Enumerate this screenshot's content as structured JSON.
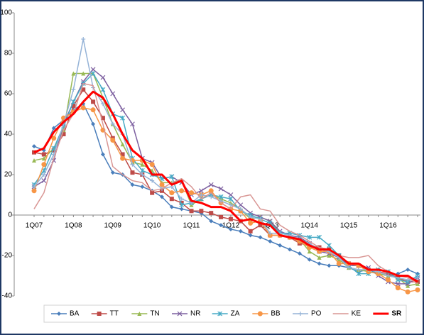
{
  "chart_data": {
    "type": "line",
    "categories": [
      "1Q07",
      null,
      null,
      null,
      "1Q08",
      null,
      null,
      null,
      "1Q09",
      null,
      null,
      null,
      "1Q10",
      null,
      null,
      null,
      "1Q11",
      null,
      null,
      null,
      "1Q12",
      null,
      null,
      null,
      "1Q13",
      null,
      null,
      null,
      "1Q14",
      null,
      null,
      null,
      "1Q15",
      null,
      null,
      null,
      "1Q16",
      null,
      null,
      null
    ],
    "ylim": [
      -40,
      100
    ],
    "yticks": [
      -40,
      -20,
      0,
      20,
      40,
      60,
      80,
      100
    ],
    "grid": false,
    "legend": "bottom",
    "series": [
      {
        "name": "BA",
        "color": "#4a7ebb",
        "marker": "diamond",
        "values": [
          34,
          32,
          43,
          47,
          52,
          55,
          45,
          30,
          21,
          20,
          15,
          14,
          12,
          9,
          4,
          3,
          2,
          1,
          -3,
          -5,
          -7,
          -8,
          -10,
          -11,
          -13,
          -15,
          -17,
          -19,
          -22,
          -24,
          -25,
          -25,
          -26,
          -28,
          -27,
          -29,
          -30,
          -29,
          -27,
          -29
        ]
      },
      {
        "name": "TT",
        "color": "#be4b48",
        "marker": "square",
        "values": [
          31,
          30,
          32,
          40,
          54,
          62,
          56,
          48,
          38,
          30,
          21,
          20,
          11,
          12,
          8,
          6,
          2,
          2,
          1,
          -1,
          -2,
          -3,
          -8,
          -5,
          -10,
          -10,
          -11,
          -14,
          -15,
          -16,
          -17,
          -20,
          -24,
          -25,
          -27,
          -28,
          -29,
          -31,
          -33,
          -33
        ]
      },
      {
        "name": "TN",
        "color": "#98b954",
        "marker": "triangle",
        "values": [
          27,
          28,
          33,
          42,
          70,
          70,
          70,
          58,
          45,
          35,
          26,
          25,
          22,
          16,
          16,
          17,
          5,
          8,
          10,
          8,
          6,
          3,
          -2,
          -1,
          -3,
          -9,
          -10,
          -12,
          -18,
          -21,
          -20,
          -22,
          -26,
          -27,
          -28,
          -29,
          -30,
          -31,
          -35,
          -34
        ]
      },
      {
        "name": "NR",
        "color": "#7d60a0",
        "marker": "x",
        "values": [
          14,
          17,
          27,
          45,
          56,
          66,
          72,
          68,
          60,
          52,
          45,
          28,
          26,
          18,
          19,
          16,
          10,
          12,
          15,
          13,
          10,
          5,
          1,
          -1,
          -3,
          -8,
          -10,
          -11,
          -14,
          -18,
          -19,
          -21,
          -25,
          -25,
          -26,
          -30,
          -33,
          -34,
          -34,
          -31
        ]
      },
      {
        "name": "ZA",
        "color": "#46aac5",
        "marker": "star",
        "values": [
          15,
          22,
          33,
          44,
          56,
          65,
          70,
          62,
          50,
          48,
          28,
          22,
          20,
          18,
          19,
          5,
          6,
          8,
          10,
          9,
          8,
          2,
          0,
          -2,
          -4,
          -9,
          -9,
          -10,
          -11,
          -11,
          -15,
          -20,
          -25,
          -29,
          -29,
          -27,
          -28,
          -32,
          -33,
          -30
        ]
      },
      {
        "name": "BB",
        "color": "#f79646",
        "marker": "circle",
        "values": [
          12,
          25,
          38,
          48,
          51,
          53,
          52,
          42,
          37,
          28,
          27,
          27,
          25,
          15,
          11,
          12,
          11,
          10,
          12,
          6,
          3,
          2,
          -4,
          -3,
          -10,
          -10,
          -11,
          -13,
          -16,
          -18,
          -18,
          -24,
          -24,
          -25,
          -28,
          -29,
          -32,
          -36,
          -38,
          -37
        ]
      },
      {
        "name": "PO",
        "color": "#95b3d7",
        "marker": "plus",
        "values": [
          14,
          20,
          30,
          45,
          62,
          87,
          63,
          55,
          45,
          40,
          25,
          20,
          17,
          13,
          14,
          8,
          6,
          10,
          9,
          7,
          5,
          3,
          -1,
          -2,
          -9,
          -9,
          -10,
          -12,
          -14,
          -17,
          -18,
          -21,
          -26,
          -27,
          -27,
          -28,
          -30,
          -31,
          -32,
          -31
        ]
      },
      {
        "name": "KE",
        "color": "#d99694",
        "marker": "none",
        "values": [
          3,
          11,
          28,
          42,
          50,
          65,
          64,
          45,
          24,
          20,
          17,
          16,
          12,
          13,
          16,
          18,
          14,
          8,
          11,
          6,
          3,
          9,
          10,
          3,
          2,
          -5,
          -8,
          -10,
          -13,
          -16,
          -17,
          -20,
          -21,
          -21,
          -20,
          -25,
          -28,
          -30,
          -31,
          -34
        ]
      },
      {
        "name": "SR",
        "color": "#ff0000",
        "marker": "none",
        "width": 3,
        "values": [
          31,
          33,
          41,
          46,
          50,
          56,
          61,
          58,
          50,
          40,
          32,
          28,
          20,
          20,
          15,
          17,
          7,
          6,
          4,
          4,
          2,
          -3,
          -2,
          -4,
          -5,
          -10,
          -11,
          -12,
          -15,
          -17,
          -17,
          -20,
          -24,
          -24,
          -27,
          -27,
          -28,
          -30,
          -30,
          -33
        ]
      }
    ]
  }
}
